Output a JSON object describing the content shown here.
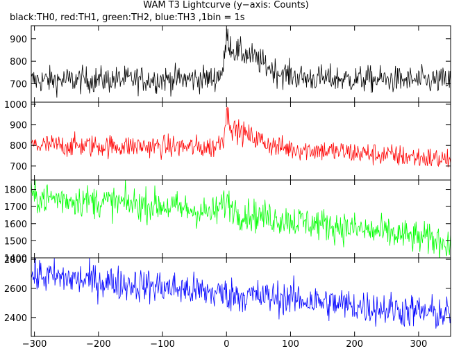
{
  "chart_data": {
    "type": "line",
    "title": "WAM T3 Lightcurve (y−axis: Counts)",
    "subtitle": "black:TH0, red:TH1, green:TH2, blue:TH3 ,1bin = 1s",
    "x_ticks": [
      -300,
      -200,
      -100,
      0,
      100,
      200,
      300
    ],
    "xlim": [
      -305,
      350
    ],
    "grid": false,
    "panels": [
      {
        "name": "TH0",
        "color": "#000000",
        "ylim": [
          618,
          958
        ],
        "yticks": [
          700,
          800,
          900
        ],
        "baseline": [
          [
            -305,
            715
          ],
          [
            -20,
            722
          ],
          [
            -5,
            760
          ],
          [
            0,
            910
          ],
          [
            10,
            850
          ],
          [
            40,
            820
          ],
          [
            80,
            750
          ],
          [
            120,
            725
          ],
          [
            350,
            712
          ]
        ],
        "noise": 30
      },
      {
        "name": "TH1",
        "color": "#ff0000",
        "ylim": [
          632,
          1010
        ],
        "yticks": [
          700,
          800,
          900,
          1000
        ],
        "baseline": [
          [
            -305,
            800
          ],
          [
            -100,
            795
          ],
          [
            -20,
            790
          ],
          [
            -5,
            840
          ],
          [
            0,
            960
          ],
          [
            10,
            880
          ],
          [
            40,
            840
          ],
          [
            80,
            790
          ],
          [
            200,
            765
          ],
          [
            350,
            730
          ]
        ],
        "noise": 28
      },
      {
        "name": "TH2",
        "color": "#00ff00",
        "ylim": [
          1400,
          1855
        ],
        "yticks": [
          1400,
          1500,
          1600,
          1700,
          1800
        ],
        "baseline": [
          [
            -305,
            1755
          ],
          [
            -100,
            1705
          ],
          [
            -20,
            1660
          ],
          [
            0,
            1730
          ],
          [
            20,
            1660
          ],
          [
            100,
            1620
          ],
          [
            200,
            1570
          ],
          [
            350,
            1490
          ]
        ],
        "noise": 48
      },
      {
        "name": "TH3",
        "color": "#0000ff",
        "ylim": [
          2270,
          2810
        ],
        "yticks": [
          2400,
          2600,
          2800
        ],
        "baseline": [
          [
            -305,
            2690
          ],
          [
            -100,
            2610
          ],
          [
            0,
            2560
          ],
          [
            100,
            2530
          ],
          [
            200,
            2480
          ],
          [
            350,
            2420
          ]
        ],
        "noise": 60
      }
    ]
  }
}
